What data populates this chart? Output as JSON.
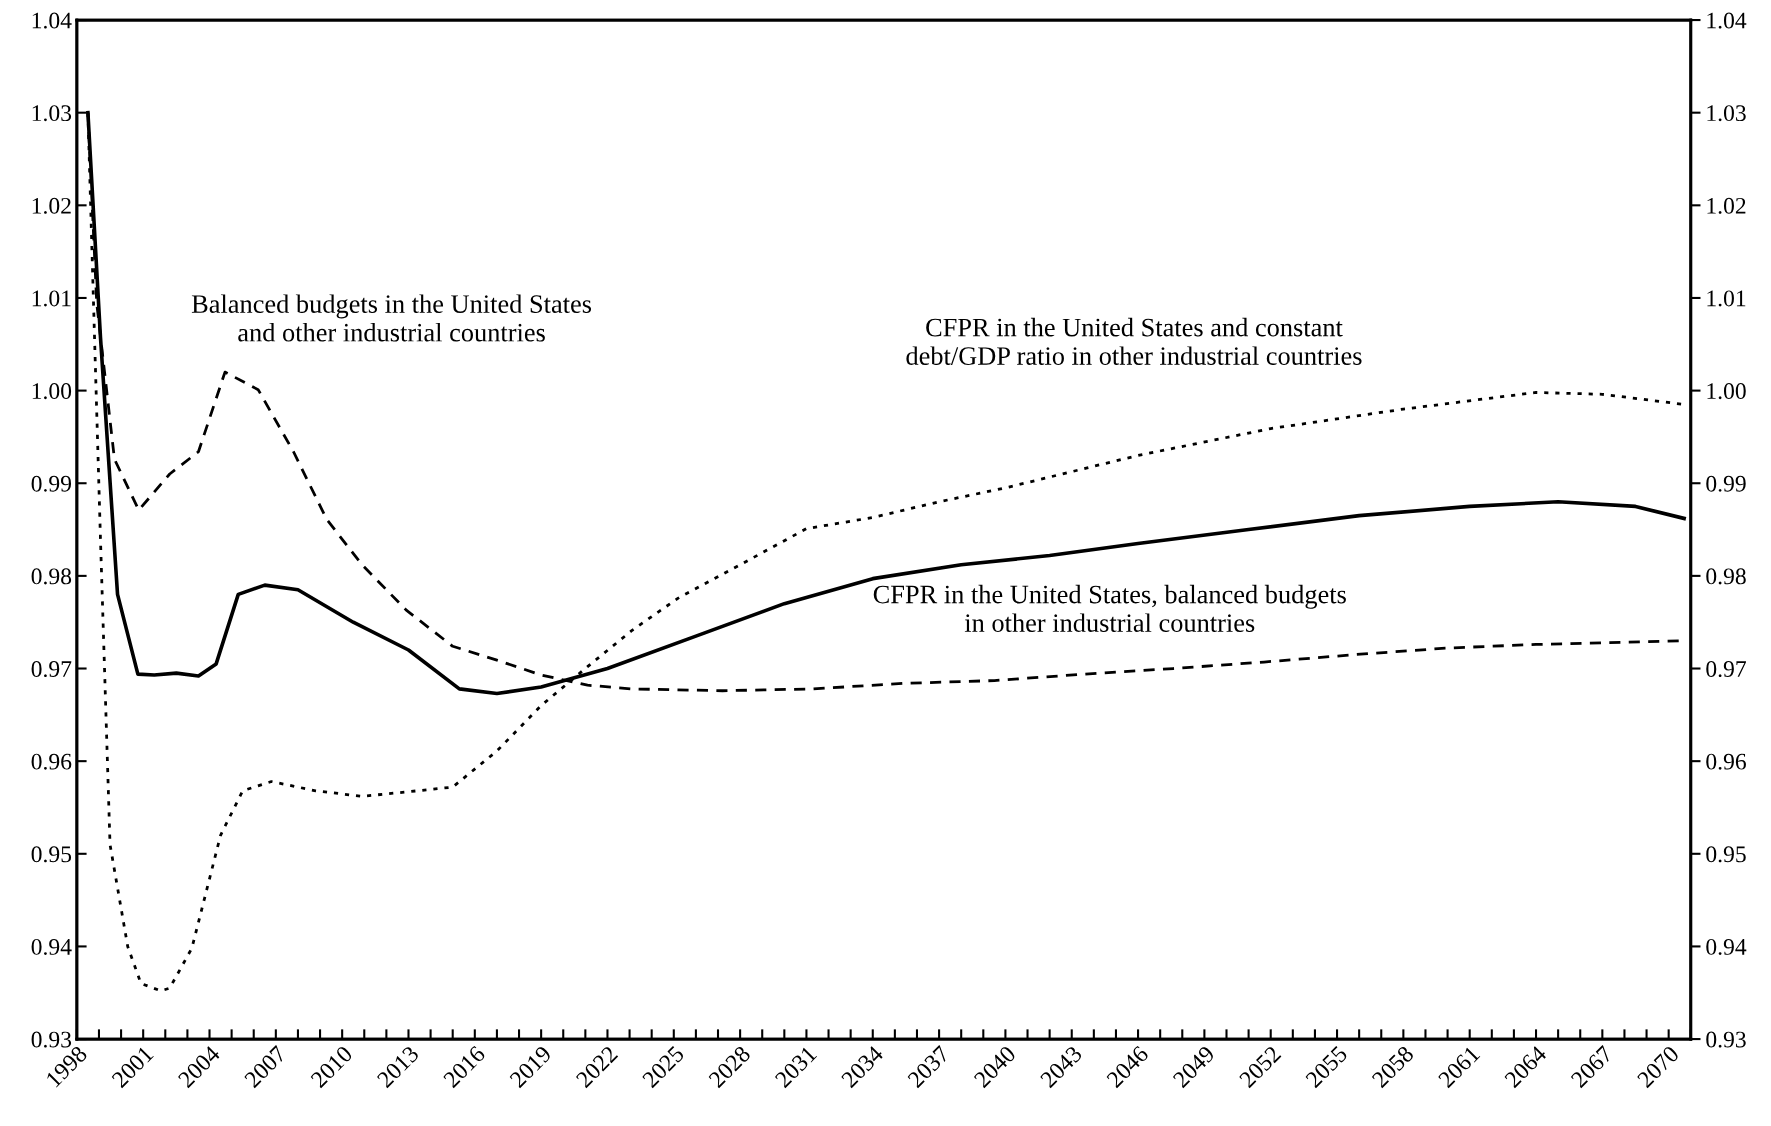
{
  "chart_data": {
    "type": "line",
    "xlim": [
      1998,
      2071
    ],
    "xticks": [
      {
        "value": 1998,
        "label": "1998"
      },
      {
        "value": 1999,
        "label": null
      },
      {
        "value": 2000,
        "label": null
      },
      {
        "value": 2001,
        "label": "2001"
      },
      {
        "value": 2002,
        "label": null
      },
      {
        "value": 2003,
        "label": null
      },
      {
        "value": 2004,
        "label": "2004"
      },
      {
        "value": 2005,
        "label": null
      },
      {
        "value": 2006,
        "label": null
      },
      {
        "value": 2007,
        "label": "2007"
      },
      {
        "value": 2008,
        "label": null
      },
      {
        "value": 2009,
        "label": null
      },
      {
        "value": 2010,
        "label": "2010"
      },
      {
        "value": 2011,
        "label": null
      },
      {
        "value": 2012,
        "label": null
      },
      {
        "value": 2013,
        "label": "2013"
      },
      {
        "value": 2014,
        "label": null
      },
      {
        "value": 2015,
        "label": null
      },
      {
        "value": 2016,
        "label": "2016"
      },
      {
        "value": 2017,
        "label": null
      },
      {
        "value": 2018,
        "label": null
      },
      {
        "value": 2019,
        "label": "2019"
      },
      {
        "value": 2020,
        "label": null
      },
      {
        "value": 2021,
        "label": null
      },
      {
        "value": 2022,
        "label": "2022"
      },
      {
        "value": 2023,
        "label": null
      },
      {
        "value": 2024,
        "label": null
      },
      {
        "value": 2025,
        "label": "2025"
      },
      {
        "value": 2026,
        "label": null
      },
      {
        "value": 2027,
        "label": null
      },
      {
        "value": 2028,
        "label": "2028"
      },
      {
        "value": 2029,
        "label": null
      },
      {
        "value": 2030,
        "label": null
      },
      {
        "value": 2031,
        "label": "2031"
      },
      {
        "value": 2032,
        "label": null
      },
      {
        "value": 2033,
        "label": null
      },
      {
        "value": 2034,
        "label": "2034"
      },
      {
        "value": 2035,
        "label": null
      },
      {
        "value": 2036,
        "label": null
      },
      {
        "value": 2037,
        "label": "2037"
      },
      {
        "value": 2038,
        "label": null
      },
      {
        "value": 2039,
        "label": null
      },
      {
        "value": 2040,
        "label": "2040"
      },
      {
        "value": 2041,
        "label": null
      },
      {
        "value": 2042,
        "label": null
      },
      {
        "value": 2043,
        "label": "2043"
      },
      {
        "value": 2044,
        "label": null
      },
      {
        "value": 2045,
        "label": null
      },
      {
        "value": 2046,
        "label": "2046"
      },
      {
        "value": 2047,
        "label": null
      },
      {
        "value": 2048,
        "label": null
      },
      {
        "value": 2049,
        "label": "2049"
      },
      {
        "value": 2050,
        "label": null
      },
      {
        "value": 2051,
        "label": null
      },
      {
        "value": 2052,
        "label": "2052"
      },
      {
        "value": 2053,
        "label": null
      },
      {
        "value": 2054,
        "label": null
      },
      {
        "value": 2055,
        "label": "2055"
      },
      {
        "value": 2056,
        "label": null
      },
      {
        "value": 2057,
        "label": null
      },
      {
        "value": 2058,
        "label": "2058"
      },
      {
        "value": 2059,
        "label": null
      },
      {
        "value": 2060,
        "label": null
      },
      {
        "value": 2061,
        "label": "2061"
      },
      {
        "value": 2062,
        "label": null
      },
      {
        "value": 2063,
        "label": null
      },
      {
        "value": 2064,
        "label": "2064"
      },
      {
        "value": 2065,
        "label": null
      },
      {
        "value": 2066,
        "label": null
      },
      {
        "value": 2067,
        "label": "2067"
      },
      {
        "value": 2068,
        "label": null
      },
      {
        "value": 2069,
        "label": null
      },
      {
        "value": 2070,
        "label": "2070"
      },
      {
        "value": 2071,
        "label": null
      }
    ],
    "ylim": [
      0.93,
      1.04
    ],
    "yticks": [
      {
        "value": 0.93,
        "label": "0.93"
      },
      {
        "value": 0.94,
        "label": "0.94"
      },
      {
        "value": 0.95,
        "label": "0.95"
      },
      {
        "value": 0.96,
        "label": "0.96"
      },
      {
        "value": 0.97,
        "label": "0.97"
      },
      {
        "value": 0.98,
        "label": "0.98"
      },
      {
        "value": 0.99,
        "label": "0.99"
      },
      {
        "value": 1.0,
        "label": "1.00"
      },
      {
        "value": 1.01,
        "label": "1.01"
      },
      {
        "value": 1.02,
        "label": "1.02"
      },
      {
        "value": 1.03,
        "label": "1.03"
      },
      {
        "value": 1.04,
        "label": "1.04"
      }
    ],
    "y2lim": [
      0.93,
      1.04
    ],
    "y2ticks": [
      {
        "value": 0.93,
        "label": "0.93"
      },
      {
        "value": 0.94,
        "label": "0.94"
      },
      {
        "value": 0.95,
        "label": "0.95"
      },
      {
        "value": 0.96,
        "label": "0.96"
      },
      {
        "value": 0.97,
        "label": "0.97"
      },
      {
        "value": 0.98,
        "label": "0.98"
      },
      {
        "value": 0.99,
        "label": "0.99"
      },
      {
        "value": 1.0,
        "label": "1.00"
      },
      {
        "value": 1.01,
        "label": "1.01"
      },
      {
        "value": 1.02,
        "label": "1.02"
      },
      {
        "value": 1.03,
        "label": "1.03"
      },
      {
        "value": 1.04,
        "label": "1.04"
      }
    ],
    "grid": false,
    "legend": false,
    "series": [
      {
        "color": "#000000",
        "line_style": "solid",
        "x": [
          1998.5,
          1999.07,
          1999.84,
          2000.76,
          2001.5,
          2002.5,
          2003.5,
          2004.3,
          2005.3,
          2006.5,
          2008,
          2010.5,
          2013,
          2015.3,
          2017,
          2019,
          2022,
          2026,
          2030,
          2034,
          2038,
          2042,
          2046,
          2051,
          2056,
          2061,
          2065,
          2068.5,
          2070.7
        ],
        "values": [
          1.03,
          1.0057,
          0.978,
          0.9694,
          0.9693,
          0.9695,
          0.9692,
          0.9705,
          0.978,
          0.979,
          0.9785,
          0.975,
          0.972,
          0.9678,
          0.9673,
          0.968,
          0.97,
          0.9735,
          0.977,
          0.9797,
          0.9812,
          0.9822,
          0.9835,
          0.985,
          0.9865,
          0.9875,
          0.988,
          0.9875,
          0.9862
        ]
      },
      {
        "color": "#000000",
        "line_style": "dashed",
        "x": [
          1998.5,
          1998.9,
          1999.7,
          2000.8,
          2002.2,
          2003.5,
          2004.7,
          2006.2,
          2007.8,
          2009.3,
          2010.9,
          2012.9,
          2015.0,
          2017,
          2019,
          2021.1,
          2023.1,
          2027.2,
          2031.3,
          2035.4,
          2039.5,
          2043.6,
          2047.6,
          2051.7,
          2055.8,
          2059.9,
          2064,
          2070.7
        ],
        "values": [
          1.03,
          1.0094,
          0.9926,
          0.9871,
          0.991,
          0.9934,
          1.002,
          1.0001,
          0.9934,
          0.9861,
          0.9812,
          0.9763,
          0.9724,
          0.9709,
          0.9693,
          0.9682,
          0.9678,
          0.9676,
          0.9678,
          0.9684,
          0.9687,
          0.9694,
          0.97,
          0.9707,
          0.9715,
          0.9722,
          0.9726,
          0.973
        ]
      },
      {
        "color": "#000000",
        "line_style": "dotted",
        "x": [
          1998.5,
          1999.07,
          1999.5,
          2000.3,
          2000.9,
          2001.8,
          2002.2,
          2003.2,
          2004.5,
          2005.5,
          2006.8,
          2008.8,
          2010.9,
          2013.4,
          2015,
          2017,
          2019,
          2021.1,
          2023.1,
          2025.2,
          2028,
          2031,
          2034,
          2037,
          2040,
          2046,
          2052,
          2058,
          2064,
          2067,
          2070.7
        ],
        "values": [
          1.03,
          0.9838,
          0.951,
          0.94,
          0.936,
          0.9352,
          0.9355,
          0.9398,
          0.952,
          0.9568,
          0.9578,
          0.9568,
          0.9562,
          0.9568,
          0.9572,
          0.9611,
          0.966,
          0.9702,
          0.9741,
          0.9776,
          0.9812,
          0.9851,
          0.9863,
          0.988,
          0.9895,
          0.993,
          0.9959,
          0.998,
          0.9998,
          0.9996,
          0.9985
        ]
      }
    ],
    "annotations": [
      "Balanced budgets in the United States\nand other industrial countries",
      "CFPR in the United States and constant\ndebt/GDP ratio in other industrial countries",
      "CFPR in the United States, balanced budgets\nin other industrial countries"
    ]
  }
}
